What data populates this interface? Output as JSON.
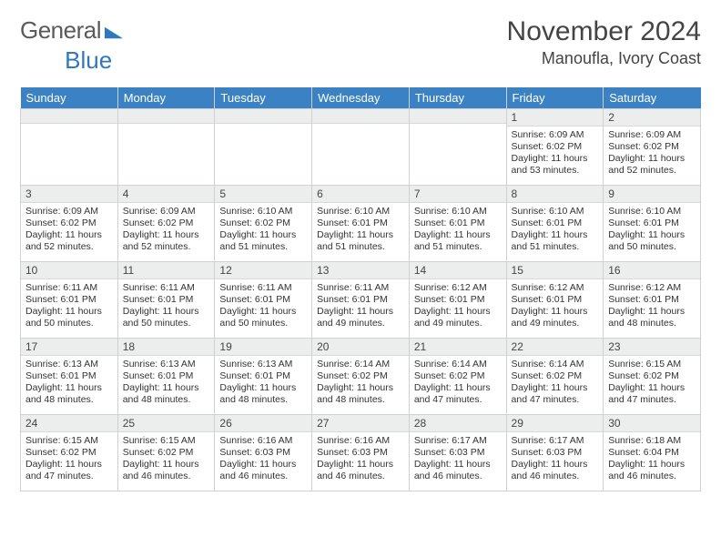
{
  "brand": {
    "part1": "General",
    "part2": "Blue"
  },
  "title": "November 2024",
  "location": "Manoufla, Ivory Coast",
  "colors": {
    "header_bg": "#3b82c4",
    "header_fg": "#ffffff",
    "daynum_bg": "#eceded",
    "border": "#d0d0d0",
    "text": "#333333",
    "brand_gray": "#5a5a5a",
    "brand_blue": "#2f78bd"
  },
  "weekdays": [
    "Sunday",
    "Monday",
    "Tuesday",
    "Wednesday",
    "Thursday",
    "Friday",
    "Saturday"
  ],
  "weeks": [
    [
      {
        "n": "",
        "sunrise": "",
        "sunset": "",
        "daylight": ""
      },
      {
        "n": "",
        "sunrise": "",
        "sunset": "",
        "daylight": ""
      },
      {
        "n": "",
        "sunrise": "",
        "sunset": "",
        "daylight": ""
      },
      {
        "n": "",
        "sunrise": "",
        "sunset": "",
        "daylight": ""
      },
      {
        "n": "",
        "sunrise": "",
        "sunset": "",
        "daylight": ""
      },
      {
        "n": "1",
        "sunrise": "Sunrise: 6:09 AM",
        "sunset": "Sunset: 6:02 PM",
        "daylight": "Daylight: 11 hours and 53 minutes."
      },
      {
        "n": "2",
        "sunrise": "Sunrise: 6:09 AM",
        "sunset": "Sunset: 6:02 PM",
        "daylight": "Daylight: 11 hours and 52 minutes."
      }
    ],
    [
      {
        "n": "3",
        "sunrise": "Sunrise: 6:09 AM",
        "sunset": "Sunset: 6:02 PM",
        "daylight": "Daylight: 11 hours and 52 minutes."
      },
      {
        "n": "4",
        "sunrise": "Sunrise: 6:09 AM",
        "sunset": "Sunset: 6:02 PM",
        "daylight": "Daylight: 11 hours and 52 minutes."
      },
      {
        "n": "5",
        "sunrise": "Sunrise: 6:10 AM",
        "sunset": "Sunset: 6:02 PM",
        "daylight": "Daylight: 11 hours and 51 minutes."
      },
      {
        "n": "6",
        "sunrise": "Sunrise: 6:10 AM",
        "sunset": "Sunset: 6:01 PM",
        "daylight": "Daylight: 11 hours and 51 minutes."
      },
      {
        "n": "7",
        "sunrise": "Sunrise: 6:10 AM",
        "sunset": "Sunset: 6:01 PM",
        "daylight": "Daylight: 11 hours and 51 minutes."
      },
      {
        "n": "8",
        "sunrise": "Sunrise: 6:10 AM",
        "sunset": "Sunset: 6:01 PM",
        "daylight": "Daylight: 11 hours and 51 minutes."
      },
      {
        "n": "9",
        "sunrise": "Sunrise: 6:10 AM",
        "sunset": "Sunset: 6:01 PM",
        "daylight": "Daylight: 11 hours and 50 minutes."
      }
    ],
    [
      {
        "n": "10",
        "sunrise": "Sunrise: 6:11 AM",
        "sunset": "Sunset: 6:01 PM",
        "daylight": "Daylight: 11 hours and 50 minutes."
      },
      {
        "n": "11",
        "sunrise": "Sunrise: 6:11 AM",
        "sunset": "Sunset: 6:01 PM",
        "daylight": "Daylight: 11 hours and 50 minutes."
      },
      {
        "n": "12",
        "sunrise": "Sunrise: 6:11 AM",
        "sunset": "Sunset: 6:01 PM",
        "daylight": "Daylight: 11 hours and 50 minutes."
      },
      {
        "n": "13",
        "sunrise": "Sunrise: 6:11 AM",
        "sunset": "Sunset: 6:01 PM",
        "daylight": "Daylight: 11 hours and 49 minutes."
      },
      {
        "n": "14",
        "sunrise": "Sunrise: 6:12 AM",
        "sunset": "Sunset: 6:01 PM",
        "daylight": "Daylight: 11 hours and 49 minutes."
      },
      {
        "n": "15",
        "sunrise": "Sunrise: 6:12 AM",
        "sunset": "Sunset: 6:01 PM",
        "daylight": "Daylight: 11 hours and 49 minutes."
      },
      {
        "n": "16",
        "sunrise": "Sunrise: 6:12 AM",
        "sunset": "Sunset: 6:01 PM",
        "daylight": "Daylight: 11 hours and 48 minutes."
      }
    ],
    [
      {
        "n": "17",
        "sunrise": "Sunrise: 6:13 AM",
        "sunset": "Sunset: 6:01 PM",
        "daylight": "Daylight: 11 hours and 48 minutes."
      },
      {
        "n": "18",
        "sunrise": "Sunrise: 6:13 AM",
        "sunset": "Sunset: 6:01 PM",
        "daylight": "Daylight: 11 hours and 48 minutes."
      },
      {
        "n": "19",
        "sunrise": "Sunrise: 6:13 AM",
        "sunset": "Sunset: 6:01 PM",
        "daylight": "Daylight: 11 hours and 48 minutes."
      },
      {
        "n": "20",
        "sunrise": "Sunrise: 6:14 AM",
        "sunset": "Sunset: 6:02 PM",
        "daylight": "Daylight: 11 hours and 48 minutes."
      },
      {
        "n": "21",
        "sunrise": "Sunrise: 6:14 AM",
        "sunset": "Sunset: 6:02 PM",
        "daylight": "Daylight: 11 hours and 47 minutes."
      },
      {
        "n": "22",
        "sunrise": "Sunrise: 6:14 AM",
        "sunset": "Sunset: 6:02 PM",
        "daylight": "Daylight: 11 hours and 47 minutes."
      },
      {
        "n": "23",
        "sunrise": "Sunrise: 6:15 AM",
        "sunset": "Sunset: 6:02 PM",
        "daylight": "Daylight: 11 hours and 47 minutes."
      }
    ],
    [
      {
        "n": "24",
        "sunrise": "Sunrise: 6:15 AM",
        "sunset": "Sunset: 6:02 PM",
        "daylight": "Daylight: 11 hours and 47 minutes."
      },
      {
        "n": "25",
        "sunrise": "Sunrise: 6:15 AM",
        "sunset": "Sunset: 6:02 PM",
        "daylight": "Daylight: 11 hours and 46 minutes."
      },
      {
        "n": "26",
        "sunrise": "Sunrise: 6:16 AM",
        "sunset": "Sunset: 6:03 PM",
        "daylight": "Daylight: 11 hours and 46 minutes."
      },
      {
        "n": "27",
        "sunrise": "Sunrise: 6:16 AM",
        "sunset": "Sunset: 6:03 PM",
        "daylight": "Daylight: 11 hours and 46 minutes."
      },
      {
        "n": "28",
        "sunrise": "Sunrise: 6:17 AM",
        "sunset": "Sunset: 6:03 PM",
        "daylight": "Daylight: 11 hours and 46 minutes."
      },
      {
        "n": "29",
        "sunrise": "Sunrise: 6:17 AM",
        "sunset": "Sunset: 6:03 PM",
        "daylight": "Daylight: 11 hours and 46 minutes."
      },
      {
        "n": "30",
        "sunrise": "Sunrise: 6:18 AM",
        "sunset": "Sunset: 6:04 PM",
        "daylight": "Daylight: 11 hours and 46 minutes."
      }
    ]
  ]
}
